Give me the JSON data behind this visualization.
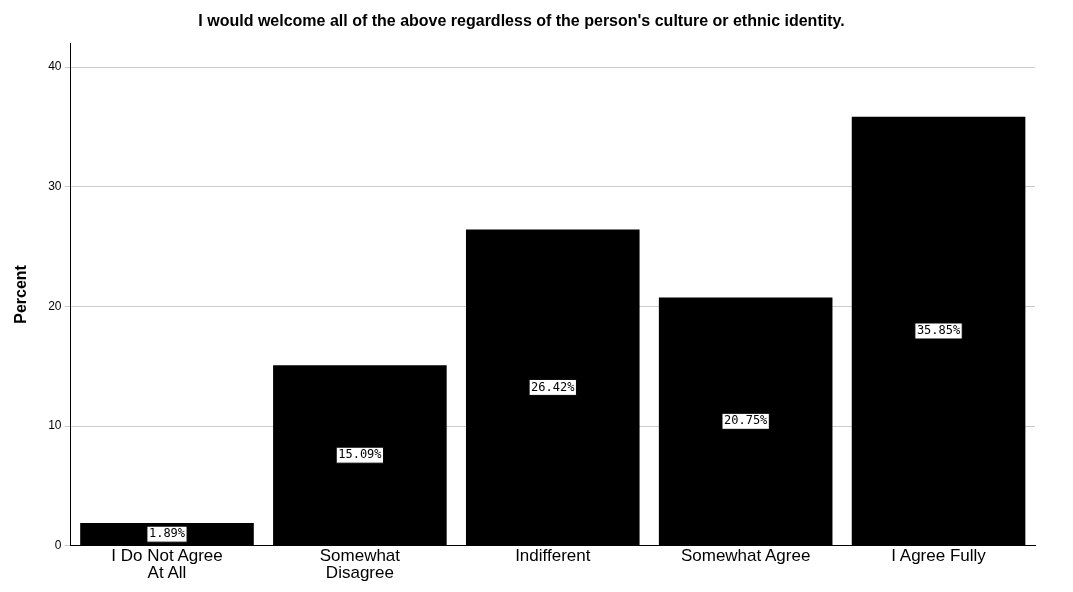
{
  "chart_data": {
    "type": "bar",
    "title": "I would welcome all of the above regardless of the person's culture or ethnic identity.",
    "ylabel": "Percent",
    "categories": [
      "I Do Not Agree At All",
      "Somewhat Disagree",
      "Indifferent",
      "Somewhat Agree",
      "I Agree Fully"
    ],
    "values": [
      1.89,
      15.09,
      26.42,
      20.75,
      35.85
    ],
    "color": "#000000",
    "value_labels": [
      "1.89%",
      "15.09%",
      "26.42%",
      "20.75%",
      "35.85%"
    ],
    "ylim": [
      0,
      42
    ],
    "yticks": [
      0,
      10,
      20,
      30,
      40
    ],
    "grid": "y",
    "legend": false
  }
}
